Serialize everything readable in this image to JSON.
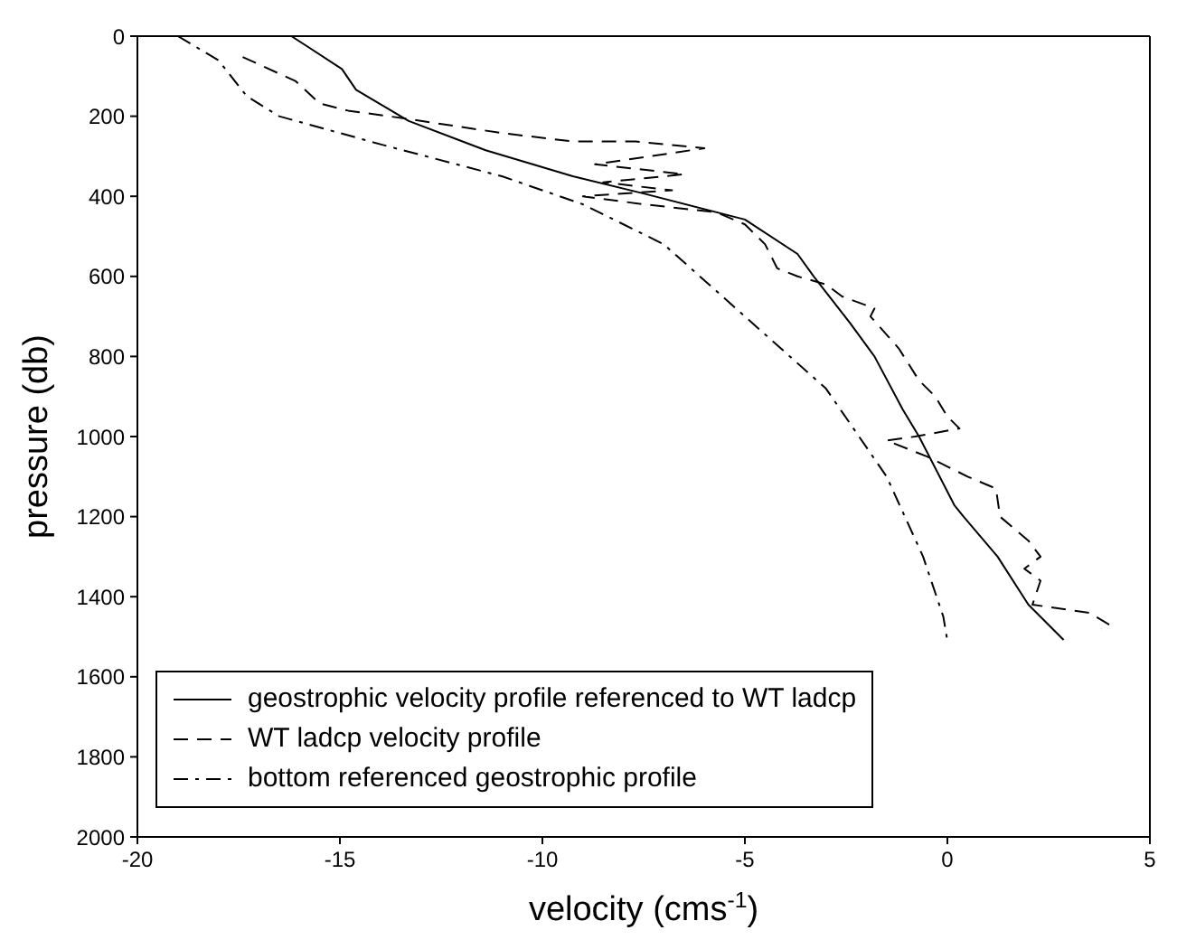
{
  "chart_data": {
    "type": "line",
    "xlabel": "velocity (cms$^{-1}$)",
    "ylabel": "pressure (db)",
    "xlim": [
      -20,
      5
    ],
    "xticks": [
      -20,
      -15,
      -10,
      -5,
      0,
      5
    ],
    "ylim": [
      2000,
      0
    ],
    "yticks": [
      0,
      200,
      400,
      600,
      800,
      1000,
      1200,
      1400,
      1600,
      1800,
      2000
    ],
    "grid": false,
    "legend": "bottom left",
    "series": [
      {
        "name": "geostrophic velocity profile referenced to WT ladcp",
        "color": "#000000",
        "line_style": "solid",
        "x": [
          -16.2,
          -15.8,
          -14.95,
          -14.6,
          -13.3,
          -11.4,
          -9.25,
          -7.5,
          -5.0,
          -3.7,
          -3.3,
          -2.4,
          -1.8,
          -1.1,
          -0.7,
          0.17,
          0.4,
          1.24,
          2.0,
          2.87
        ],
        "values": [
          0,
          26,
          82,
          134,
          212,
          285,
          350,
          393,
          458,
          544,
          600,
          717,
          800,
          933,
          1000,
          1171,
          1200,
          1300,
          1420,
          1508
        ]
      },
      {
        "name": "WT ladcp velocity profile",
        "color": "#000000",
        "line_style": "dashed",
        "x": [
          -17.4,
          -16.1,
          -16.0,
          -15.5,
          -14.8,
          -13.3,
          -11.0,
          -9.25,
          -7.7,
          -6.0,
          -8.7,
          -6.5,
          -8.5,
          -6.8,
          -9.0,
          -7.5,
          -5.7,
          -5.0,
          -4.5,
          -4.2,
          -3.7,
          -3.0,
          -2.6,
          -1.8,
          -1.9,
          -1.2,
          -0.7,
          -0.3,
          0.0,
          0.3,
          -0.8,
          -1.5,
          -0.5,
          0.5,
          1.2,
          1.3,
          2.0,
          2.3,
          1.9,
          2.3,
          2.1,
          3.5,
          4.0,
          3.8
        ],
        "values": [
          52,
          112,
          121,
          168,
          186,
          207,
          242,
          263,
          263,
          280,
          320,
          345,
          365,
          385,
          400,
          420,
          440,
          470,
          520,
          580,
          600,
          620,
          650,
          680,
          700,
          780,
          860,
          900,
          950,
          980,
          1000,
          1010,
          1050,
          1100,
          1130,
          1200,
          1260,
          1300,
          1330,
          1360,
          1420,
          1440,
          1470,
          1480
        ]
      },
      {
        "name": "bottom referenced geostrophic profile",
        "color": "#000000",
        "line_style": "dashdot",
        "x": [
          -19.0,
          -18.0,
          -17.3,
          -16.5,
          -14.0,
          -11.0,
          -9.0,
          -7.0,
          -5.0,
          -3.0,
          -1.5,
          -0.6,
          -0.1,
          0.0
        ],
        "values": [
          0,
          60,
          150,
          200,
          270,
          350,
          420,
          520,
          700,
          880,
          1100,
          1300,
          1450,
          1510
        ]
      }
    ]
  }
}
